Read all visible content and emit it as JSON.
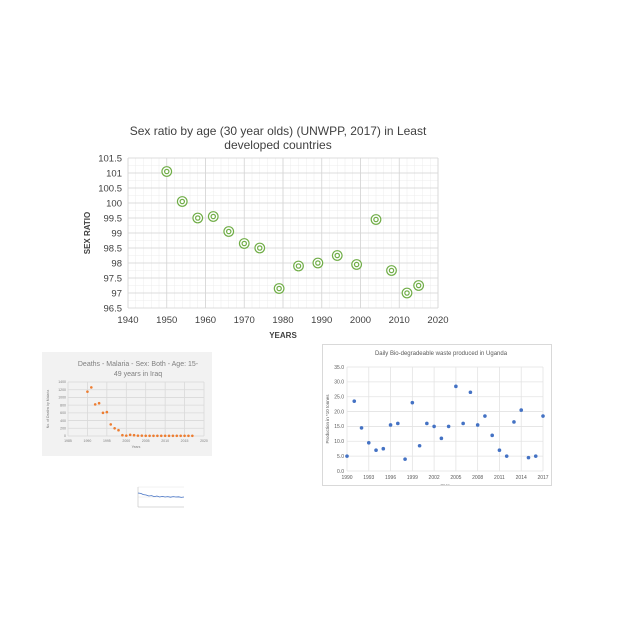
{
  "chart_data": [
    {
      "type": "scatter",
      "title": "Sex ratio by age (30 year olds) (UNWPP, 2017) in Least developed countries",
      "title_lines": [
        "Sex ratio by age (30 year olds) (UNWPP, 2017) in Least",
        "developed countries"
      ],
      "xlabel": "YEARS",
      "ylabel": "SEX RATIO",
      "xlim": [
        1940,
        2020
      ],
      "ylim": [
        96.5,
        101.5
      ],
      "xticks": [
        1940,
        1950,
        1960,
        1970,
        1980,
        1990,
        2000,
        2010,
        2020
      ],
      "yticks": [
        "96.5",
        "97",
        "97.5",
        "98",
        "98.5",
        "99",
        "99.5",
        "100",
        "100.5",
        "101",
        "101.5"
      ],
      "grid": true,
      "marker_color": "#70ad47",
      "points": [
        {
          "x": 1950,
          "y": 101.05
        },
        {
          "x": 1954,
          "y": 100.05
        },
        {
          "x": 1958,
          "y": 99.5
        },
        {
          "x": 1962,
          "y": 99.55
        },
        {
          "x": 1966,
          "y": 99.05
        },
        {
          "x": 1970,
          "y": 98.65
        },
        {
          "x": 1974,
          "y": 98.5
        },
        {
          "x": 1979,
          "y": 97.15
        },
        {
          "x": 1984,
          "y": 97.9
        },
        {
          "x": 1989,
          "y": 98.0
        },
        {
          "x": 1994,
          "y": 98.25
        },
        {
          "x": 1999,
          "y": 97.95
        },
        {
          "x": 2004,
          "y": 99.45
        },
        {
          "x": 2008,
          "y": 97.75
        },
        {
          "x": 2012,
          "y": 97.0
        },
        {
          "x": 2015,
          "y": 97.25
        }
      ]
    },
    {
      "type": "scatter",
      "title": "Deaths - Malaria - Sex: Both - Age: 15-49 years in Iraq",
      "title_lines": [
        "Deaths - Malaria - Sex: Both - Age: 15-",
        "49 years in Iraq"
      ],
      "xlabel": "Years",
      "ylabel": "No. of Deaths by Malaria",
      "xlim": [
        1985,
        2020
      ],
      "ylim": [
        0,
        1400
      ],
      "xticks": [
        1985,
        1990,
        1995,
        2000,
        2005,
        2010,
        2015,
        2020
      ],
      "yticks": [
        "0",
        "200",
        "400",
        "600",
        "800",
        "1000",
        "1200",
        "1400"
      ],
      "grid": true,
      "marker_color": "#ed7d31",
      "points": [
        {
          "x": 1990,
          "y": 1150
        },
        {
          "x": 1991,
          "y": 1260
        },
        {
          "x": 1992,
          "y": 820
        },
        {
          "x": 1993,
          "y": 850
        },
        {
          "x": 1994,
          "y": 600
        },
        {
          "x": 1995,
          "y": 620
        },
        {
          "x": 1996,
          "y": 300
        },
        {
          "x": 1997,
          "y": 200
        },
        {
          "x": 1998,
          "y": 150
        },
        {
          "x": 1999,
          "y": 20
        },
        {
          "x": 2000,
          "y": 10
        },
        {
          "x": 2001,
          "y": 30
        },
        {
          "x": 2002,
          "y": 20
        },
        {
          "x": 2003,
          "y": 10
        },
        {
          "x": 2004,
          "y": 10
        },
        {
          "x": 2005,
          "y": 5
        },
        {
          "x": 2006,
          "y": 5
        },
        {
          "x": 2007,
          "y": 5
        },
        {
          "x": 2008,
          "y": 5
        },
        {
          "x": 2009,
          "y": 5
        },
        {
          "x": 2010,
          "y": 5
        },
        {
          "x": 2011,
          "y": 5
        },
        {
          "x": 2012,
          "y": 5
        },
        {
          "x": 2013,
          "y": 5
        },
        {
          "x": 2014,
          "y": 5
        },
        {
          "x": 2015,
          "y": 5
        },
        {
          "x": 2016,
          "y": 5
        },
        {
          "x": 2017,
          "y": 5
        }
      ]
    },
    {
      "type": "scatter",
      "title": "Daily Bio-degradeable waste produced in Uganda",
      "xlabel": "Year",
      "ylabel": "Production in *10 tonnes",
      "xlim": [
        1990,
        2017
      ],
      "ylim": [
        0,
        35
      ],
      "xticks": [
        1990,
        1993,
        1996,
        1999,
        2002,
        2005,
        2008,
        2011,
        2014,
        2017
      ],
      "yticks": [
        "0.0",
        "5.0",
        "10.0",
        "15.0",
        "20.0",
        "25.0",
        "30.0",
        "35.0"
      ],
      "grid": true,
      "marker_color": "#4472c4",
      "points": [
        {
          "x": 1990,
          "y": 5.0
        },
        {
          "x": 1991,
          "y": 23.5
        },
        {
          "x": 1992,
          "y": 14.5
        },
        {
          "x": 1993,
          "y": 9.5
        },
        {
          "x": 1994,
          "y": 7.0
        },
        {
          "x": 1995,
          "y": 7.5
        },
        {
          "x": 1996,
          "y": 15.5
        },
        {
          "x": 1997,
          "y": 16.0
        },
        {
          "x": 1998,
          "y": 4.0
        },
        {
          "x": 1999,
          "y": 23.0
        },
        {
          "x": 2000,
          "y": 8.5
        },
        {
          "x": 2001,
          "y": 16.0
        },
        {
          "x": 2002,
          "y": 15.0
        },
        {
          "x": 2003,
          "y": 11.0
        },
        {
          "x": 2004,
          "y": 15.0
        },
        {
          "x": 2005,
          "y": 28.5
        },
        {
          "x": 2006,
          "y": 16.0
        },
        {
          "x": 2007,
          "y": 26.5
        },
        {
          "x": 2008,
          "y": 15.5
        },
        {
          "x": 2009,
          "y": 18.5
        },
        {
          "x": 2010,
          "y": 12.0
        },
        {
          "x": 2011,
          "y": 7.0
        },
        {
          "x": 2012,
          "y": 5.0
        },
        {
          "x": 2013,
          "y": 16.5
        },
        {
          "x": 2014,
          "y": 20.5
        },
        {
          "x": 2015,
          "y": 4.5
        },
        {
          "x": 2016,
          "y": 5.0
        },
        {
          "x": 2017,
          "y": 18.5
        }
      ]
    },
    {
      "type": "line",
      "title": "",
      "xlabel": "",
      "ylabel": "",
      "ylim": [
        0,
        1
      ],
      "series_color": "#4472c4",
      "values": [
        0.7,
        0.68,
        0.62,
        0.6,
        0.55,
        0.57,
        0.52,
        0.55,
        0.5,
        0.53,
        0.5,
        0.52,
        0.49,
        0.52,
        0.5,
        0.51,
        0.48,
        0.5
      ]
    }
  ]
}
